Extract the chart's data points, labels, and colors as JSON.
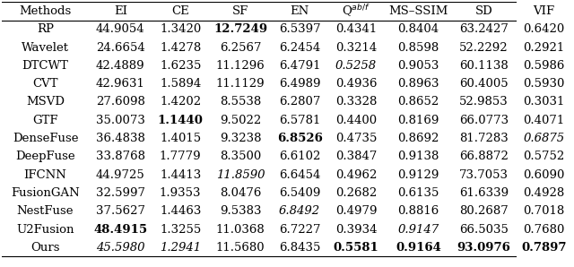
{
  "columns": [
    "Methods",
    "EI",
    "CE",
    "SF",
    "EN",
    "Q^{ab/f}",
    "MS_SSIM",
    "SD",
    "VIF"
  ],
  "col_labels": [
    "Methods",
    "EI",
    "CE",
    "SF",
    "EN",
    "Q$^{ab/f}$",
    "MS–SSIM",
    "SD",
    "VIF"
  ],
  "rows": [
    [
      "RP",
      "44.9054",
      "1.3420",
      "12.7249",
      "6.5397",
      "0.4341",
      "0.8404",
      "63.2427",
      "0.6420"
    ],
    [
      "Wavelet",
      "24.6654",
      "1.4278",
      "6.2567",
      "6.2454",
      "0.3214",
      "0.8598",
      "52.2292",
      "0.2921"
    ],
    [
      "DTCWT",
      "42.4889",
      "1.6235",
      "11.1296",
      "6.4791",
      "0.5258",
      "0.9053",
      "60.1138",
      "0.5986"
    ],
    [
      "CVT",
      "42.9631",
      "1.5894",
      "11.1129",
      "6.4989",
      "0.4936",
      "0.8963",
      "60.4005",
      "0.5930"
    ],
    [
      "MSVD",
      "27.6098",
      "1.4202",
      "8.5538",
      "6.2807",
      "0.3328",
      "0.8652",
      "52.9853",
      "0.3031"
    ],
    [
      "GTF",
      "35.0073",
      "1.1440",
      "9.5022",
      "6.5781",
      "0.4400",
      "0.8169",
      "66.0773",
      "0.4071"
    ],
    [
      "DenseFuse",
      "36.4838",
      "1.4015",
      "9.3238",
      "6.8526",
      "0.4735",
      "0.8692",
      "81.7283",
      "0.6875"
    ],
    [
      "DeepFuse",
      "33.8768",
      "1.7779",
      "8.3500",
      "6.6102",
      "0.3847",
      "0.9138",
      "66.8872",
      "0.5752"
    ],
    [
      "IFCNN",
      "44.9725",
      "1.4413",
      "11.8590",
      "6.6454",
      "0.4962",
      "0.9129",
      "73.7053",
      "0.6090"
    ],
    [
      "FusionGAN",
      "32.5997",
      "1.9353",
      "8.0476",
      "6.5409",
      "0.2682",
      "0.6135",
      "61.6339",
      "0.4928"
    ],
    [
      "NestFuse",
      "37.5627",
      "1.4463",
      "9.5383",
      "6.8492",
      "0.4979",
      "0.8816",
      "80.2687",
      "0.7018"
    ],
    [
      "U2Fusion",
      "48.4915",
      "1.3255",
      "11.0368",
      "6.7227",
      "0.3934",
      "0.9147",
      "66.5035",
      "0.7680"
    ],
    [
      "Ours",
      "45.5980",
      "1.2941",
      "11.5680",
      "6.8435",
      "0.5581",
      "0.9164",
      "93.0976",
      "0.7897"
    ]
  ],
  "bold_cells": {
    "0,3": true,
    "5,2": true,
    "6,4": true,
    "12,5": true,
    "12,6": true,
    "12,7": true,
    "12,8": true,
    "11,1": true
  },
  "italic_cells": {
    "2,5": true,
    "6,8": true,
    "8,3": true,
    "10,4": true,
    "11,6": true,
    "12,1": true,
    "12,2": true,
    "12,5": true
  },
  "background_color": "#ffffff",
  "header_color": "#ffffff",
  "line_color": "#000000",
  "font_size": 9.5,
  "figsize": [
    6.4,
    2.98
  ],
  "dpi": 100
}
